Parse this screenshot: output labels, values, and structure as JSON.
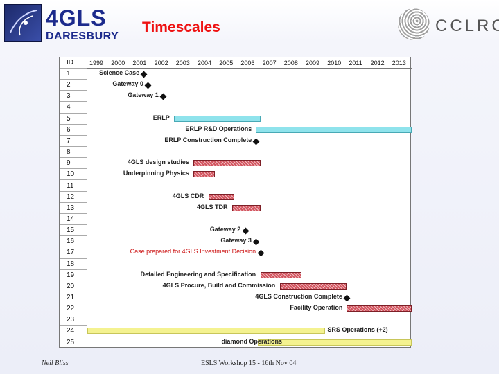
{
  "header": {
    "title": "Timescales",
    "logo_left": {
      "big": "4GLS",
      "small": "DARESBURY"
    },
    "logo_right": {
      "text": "CCLRC"
    }
  },
  "gantt": {
    "id_header": "ID",
    "years": [
      "1999",
      "2000",
      "2001",
      "2002",
      "2003",
      "2004",
      "2005",
      "2006",
      "2007",
      "2008",
      "2009",
      "2010",
      "2011",
      "2012",
      "2013"
    ],
    "ids": [
      "1",
      "2",
      "3",
      "4",
      "5",
      "6",
      "7",
      "8",
      "9",
      "10",
      "11",
      "12",
      "13",
      "14",
      "15",
      "16",
      "17",
      "18",
      "19",
      "20",
      "21",
      "22",
      "23",
      "24",
      "25"
    ],
    "tasks": [
      {
        "id": 1,
        "label": "Science Case",
        "type": "milestone",
        "at": 2001.6
      },
      {
        "id": 2,
        "label": "Gateway 0",
        "type": "milestone",
        "at": 2001.8
      },
      {
        "id": 3,
        "label": "Gateway 1",
        "type": "milestone",
        "at": 2002.5
      },
      {
        "id": 5,
        "label": "ERLP",
        "type": "bar",
        "color": "cyan",
        "start": 2003.0,
        "end": 2007.0
      },
      {
        "id": 6,
        "label": "ERLP R&D Operations",
        "type": "bar",
        "color": "cyan",
        "start": 2006.8,
        "end": 2014.0
      },
      {
        "id": 7,
        "label": "ERLP Construction Complete",
        "type": "milestone",
        "at": 2006.8
      },
      {
        "id": 9,
        "label": "4GLS design studies",
        "type": "bar",
        "color": "red",
        "start": 2003.9,
        "end": 2007.0
      },
      {
        "id": 10,
        "label": "Underpinning Physics",
        "type": "bar",
        "color": "red",
        "start": 2003.9,
        "end": 2004.9
      },
      {
        "id": 12,
        "label": "4GLS CDR",
        "type": "bar",
        "color": "red",
        "start": 2004.6,
        "end": 2005.8
      },
      {
        "id": 13,
        "label": "4GLS TDR",
        "type": "bar",
        "color": "red",
        "start": 2005.7,
        "end": 2007.0
      },
      {
        "id": 15,
        "label": "Gateway 2",
        "type": "milestone",
        "at": 2006.3
      },
      {
        "id": 16,
        "label": "Gateway 3",
        "type": "milestone",
        "at": 2006.8
      },
      {
        "id": 17,
        "label": "Case prepared for 4GLS Investment Decision",
        "type": "milestone",
        "at": 2007.0,
        "red_label": true
      },
      {
        "id": 19,
        "label": "Detailed Engineering and Specification",
        "type": "bar",
        "color": "red",
        "start": 2007.0,
        "end": 2008.9
      },
      {
        "id": 20,
        "label": "4GLS Procure, Build and Commission",
        "type": "bar",
        "color": "red",
        "start": 2007.9,
        "end": 2011.0
      },
      {
        "id": 21,
        "label": "4GLS Construction Complete",
        "type": "milestone",
        "at": 2011.0
      },
      {
        "id": 22,
        "label": "Facility Operation",
        "type": "bar",
        "color": "red",
        "start": 2011.0,
        "end": 2014.0
      },
      {
        "id": 24,
        "label": "SRS Operations (+2)",
        "type": "bar",
        "color": "yellow",
        "start": 1999.0,
        "end": 2010.0
      },
      {
        "id": 25,
        "label": "diamond Operations",
        "type": "bar",
        "color": "yellow",
        "start": 2006.9,
        "end": 2014.0
      }
    ]
  },
  "footer": {
    "author": "Neil Bliss",
    "event": "ESLS Workshop 15 - 16th Nov 04"
  }
}
